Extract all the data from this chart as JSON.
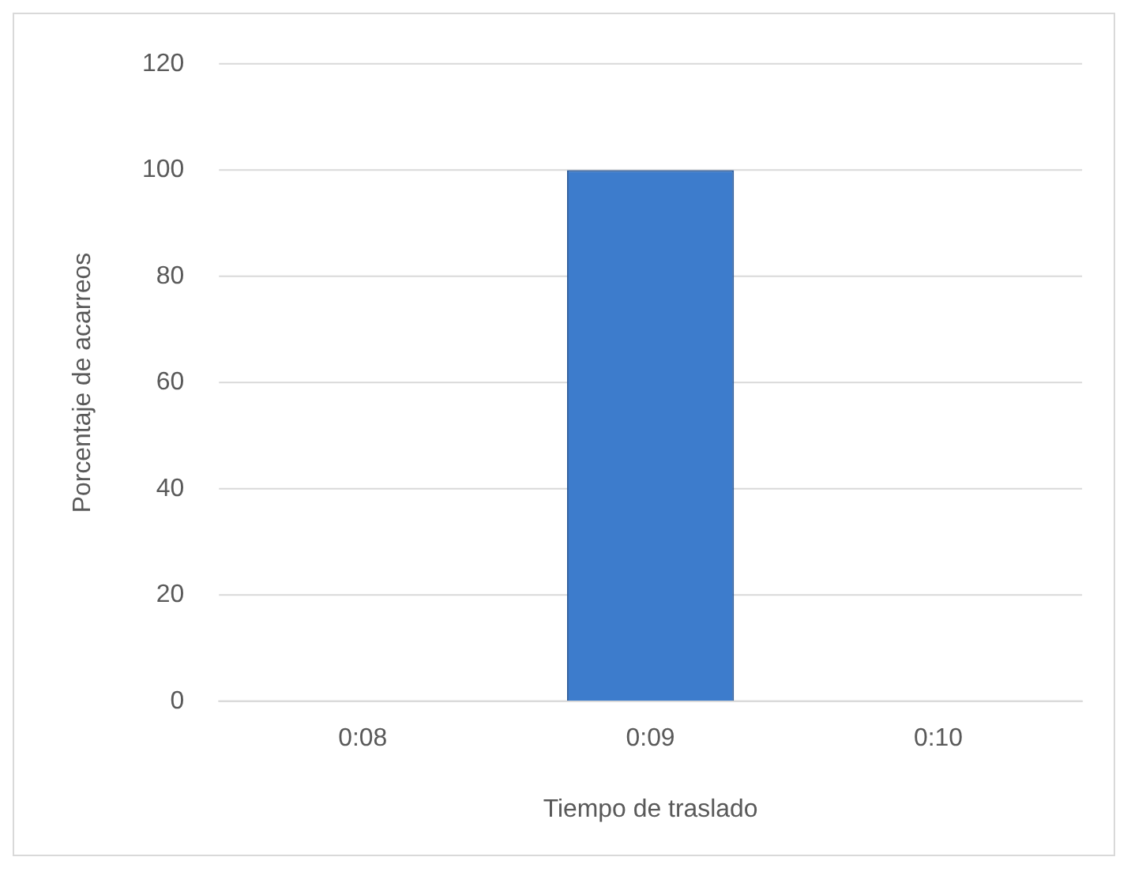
{
  "chart_data": {
    "type": "bar",
    "xlabel": "Tiempo de traslado",
    "ylabel": "Porcentaje de acarreos",
    "categories": [
      "0:08",
      "0:09",
      "0:10"
    ],
    "values": [
      0,
      100,
      0
    ],
    "color": "#3d7ccc",
    "ylim": [
      0,
      120
    ],
    "yticks": [
      0,
      20,
      40,
      60,
      80,
      100,
      120
    ],
    "grid": "y",
    "legend": false
  }
}
